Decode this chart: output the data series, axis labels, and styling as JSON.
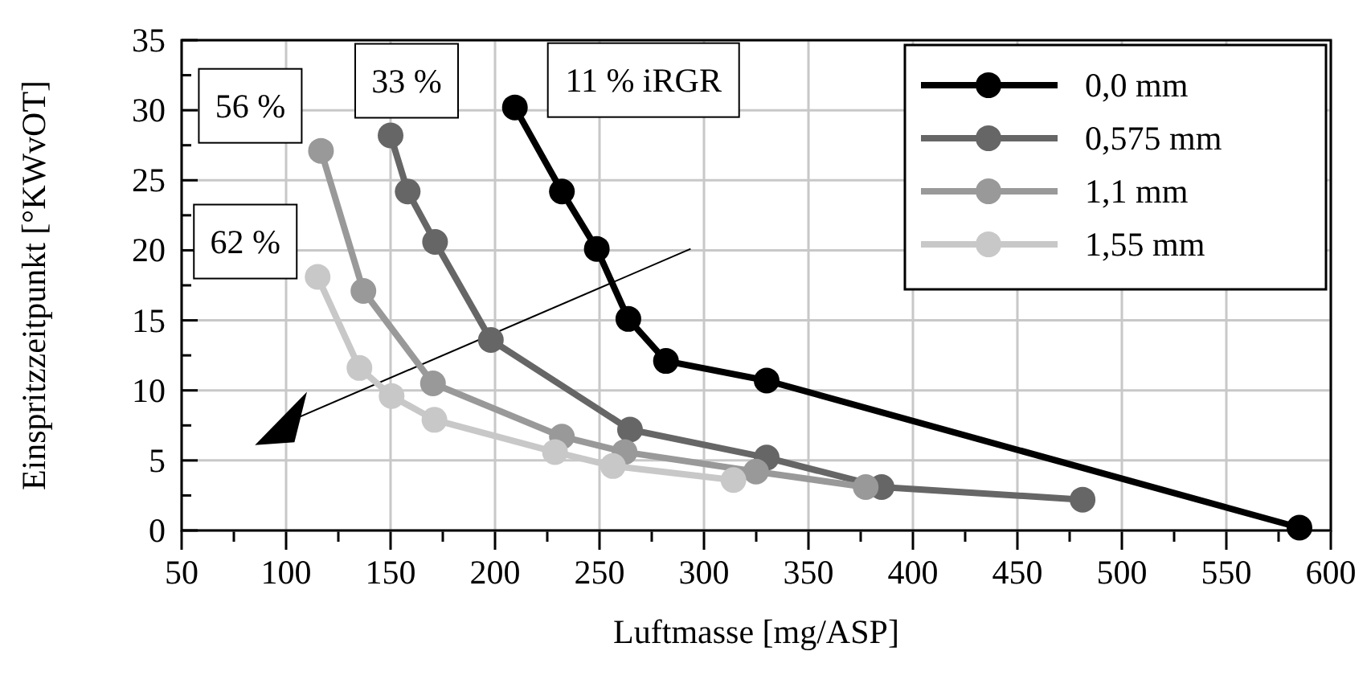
{
  "chart_data": {
    "type": "line",
    "xlabel": "Luftmasse [mg/ASP]",
    "ylabel": "Einspritzzeitpunkt [°KWvOT]",
    "xlim": [
      50,
      600
    ],
    "ylim": [
      0,
      35
    ],
    "xticks": [
      50,
      {
        "value": 75,
        "label": null
      },
      100,
      {
        "value": 125,
        "label": null
      },
      150,
      {
        "value": 175,
        "label": null
      },
      200,
      {
        "value": 225,
        "label": null
      },
      250,
      {
        "value": 275,
        "label": null
      },
      300,
      {
        "value": 325,
        "label": null
      },
      350,
      {
        "value": 375,
        "label": null
      },
      400,
      {
        "value": 425,
        "label": null
      },
      450,
      {
        "value": 475,
        "label": null
      },
      500,
      {
        "value": 525,
        "label": null
      },
      550,
      {
        "value": 575,
        "label": null
      },
      600
    ],
    "yticks": [
      0,
      {
        "value": 2.5,
        "label": null
      },
      5,
      {
        "value": 7.5,
        "label": null
      },
      10,
      {
        "value": 12.5,
        "label": null
      },
      15,
      {
        "value": 17.5,
        "label": null
      },
      20,
      {
        "value": 22.5,
        "label": null
      },
      25,
      {
        "value": 27.5,
        "label": null
      },
      30,
      {
        "value": 32.5,
        "label": null
      },
      35
    ],
    "grid": true,
    "legend": "top right",
    "marker": "circle",
    "line_style": "solid",
    "series": [
      {
        "name": "0,0 mm",
        "color": "#000000",
        "x": [
          209.5,
          232,
          248.7,
          263.8,
          281.8,
          330,
          585
        ],
        "values": [
          30.2,
          24.2,
          20.1,
          15.1,
          12.1,
          10.7,
          0.2
        ]
      },
      {
        "name": "0,575 mm",
        "color": "#666666",
        "x": [
          150,
          158.2,
          171.3,
          198,
          264.6,
          330,
          385,
          481.2
        ],
        "values": [
          28.2,
          24.2,
          20.6,
          13.6,
          7.2,
          5.2,
          3.1,
          2.2
        ]
      },
      {
        "name": "1,1 mm",
        "color": "#999999",
        "x": [
          116.7,
          137,
          170.3,
          232,
          262,
          324.9,
          377.4
        ],
        "values": [
          27.1,
          17.1,
          10.5,
          6.7,
          5.6,
          4.2,
          3.1
        ]
      },
      {
        "name": "1,55 mm",
        "color": "#c8c8c8",
        "x": [
          115.1,
          135.1,
          150.5,
          171,
          228.7,
          256.4,
          314.1
        ],
        "values": [
          18.1,
          11.6,
          9.6,
          7.9,
          5.6,
          4.6,
          3.6
        ]
      }
    ],
    "annotations": [
      {
        "text": "11 % iRGR",
        "x": 209.5,
        "y": 30.2
      },
      {
        "text": "33 %",
        "x": 150,
        "y": 28.2
      },
      {
        "text": "56 %",
        "x": 116.7,
        "y": 27.1
      },
      {
        "text": "62 %",
        "x": 115.1,
        "y": 18.1
      }
    ]
  }
}
